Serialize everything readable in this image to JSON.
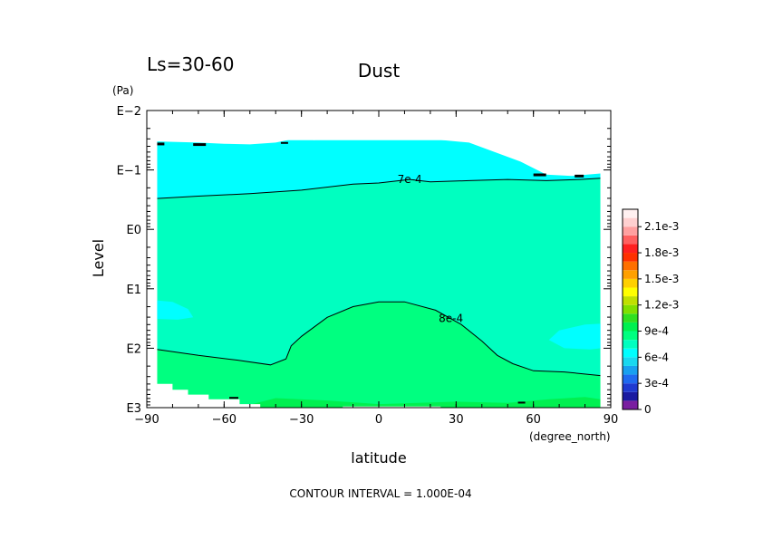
{
  "chart_data": {
    "type": "contour",
    "season_label": "Ls=30-60",
    "title": "Dust",
    "xlabel": "latitude",
    "xunit": "(degree_north)",
    "ylabel": "Level",
    "yunit": "(Pa)",
    "xlim": [
      -90,
      90
    ],
    "x_ticks": [
      "−90",
      "−60",
      "−30",
      "0",
      "30",
      "60",
      "90"
    ],
    "x_tick_values": [
      -90,
      -60,
      -30,
      0,
      30,
      60,
      90
    ],
    "y_scale": "log",
    "ylim": [
      1000,
      0.01
    ],
    "y_ticks": [
      "E−2",
      "E−1",
      "E0",
      "E1",
      "E2",
      "E3"
    ],
    "y_tick_exponents": [
      -2,
      -1,
      0,
      1,
      2,
      3
    ],
    "contour_labels": [
      {
        "text": "7e-4",
        "lat": 12,
        "exp": -0.84
      },
      {
        "text": "8e-4",
        "lat": 28,
        "exp": 1.5
      }
    ],
    "colorbar": {
      "labels": [
        "0",
        "3e-4",
        "6e-4",
        "9e-4",
        "1.2e-3",
        "1.5e-3",
        "1.8e-3",
        "2.1e-3"
      ],
      "label_values": [
        0,
        0.0003,
        0.0006,
        0.0009,
        0.0012,
        0.0015,
        0.0018,
        0.0021
      ],
      "colors": [
        "#7a1fa0",
        "#1a1aa0",
        "#1f3ad0",
        "#1f6af0",
        "#18a0f0",
        "#18d8f0",
        "#00ffff",
        "#00ffc0",
        "#00ff80",
        "#00f050",
        "#30e020",
        "#80e000",
        "#c0e000",
        "#ffff00",
        "#ffd000",
        "#ffa000",
        "#ff7000",
        "#ff3000",
        "#ff2020",
        "#ff6060",
        "#ffa0a0",
        "#ffd0d0",
        "#fff0f0"
      ]
    },
    "footer": "CONTOUR INTERVAL = 1.000E-04",
    "region_colors": {
      "upper": "#00ffc0",
      "lower": "#00ff80",
      "light": "#00ffff",
      "dark": "#000000",
      "mid": "#00f050"
    }
  }
}
